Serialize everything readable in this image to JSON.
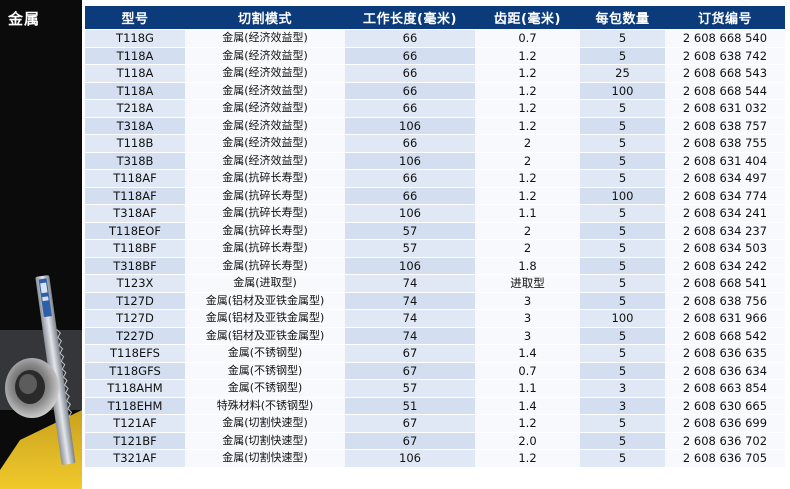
{
  "side": {
    "title": "金属"
  },
  "headers": [
    "型号",
    "切割模式",
    "工作长度(毫米)",
    "齿距(毫米)",
    "每包数量",
    "订货编号"
  ],
  "rows": [
    [
      "T118G",
      "金属(经济效益型)",
      "66",
      "0.7",
      "5",
      "2 608 668 540"
    ],
    [
      "T118A",
      "金属(经济效益型)",
      "66",
      "1.2",
      "5",
      "2 608 638 742"
    ],
    [
      "T118A",
      "金属(经济效益型)",
      "66",
      "1.2",
      "25",
      "2 608 668 543"
    ],
    [
      "T118A",
      "金属(经济效益型)",
      "66",
      "1.2",
      "100",
      "2 608 668 544"
    ],
    [
      "T218A",
      "金属(经济效益型)",
      "66",
      "1.2",
      "5",
      "2 608 631 032"
    ],
    [
      "T318A",
      "金属(经济效益型)",
      "106",
      "1.2",
      "5",
      "2 608 638 757"
    ],
    [
      "T118B",
      "金属(经济效益型)",
      "66",
      "2",
      "5",
      "2 608 638 755"
    ],
    [
      "T318B",
      "金属(经济效益型)",
      "106",
      "2",
      "5",
      "2 608 631 404"
    ],
    [
      "T118AF",
      "金属(抗碎长寿型)",
      "66",
      "1.2",
      "5",
      "2 608 634 497"
    ],
    [
      "T118AF",
      "金属(抗碎长寿型)",
      "66",
      "1.2",
      "100",
      "2 608 634 774"
    ],
    [
      "T318AF",
      "金属(抗碎长寿型)",
      "106",
      "1.1",
      "5",
      "2 608 634 241"
    ],
    [
      "T118EOF",
      "金属(抗碎长寿型)",
      "57",
      "2",
      "5",
      "2 608 634 237"
    ],
    [
      "T118BF",
      "金属(抗碎长寿型)",
      "57",
      "2",
      "5",
      "2 608 634 503"
    ],
    [
      "T318BF",
      "金属(抗碎长寿型)",
      "106",
      "1.8",
      "5",
      "2 608 634 242"
    ],
    [
      "T123X",
      "金属(进取型)",
      "74",
      "进取型",
      "5",
      "2 608 668 541"
    ],
    [
      "T127D",
      "金属(铝材及亚铁金属型)",
      "74",
      "3",
      "5",
      "2 608 638 756"
    ],
    [
      "T127D",
      "金属(铝材及亚铁金属型)",
      "74",
      "3",
      "100",
      "2 608 631 966"
    ],
    [
      "T227D",
      "金属(铝材及亚铁金属型)",
      "74",
      "3",
      "5",
      "2 608 668 542"
    ],
    [
      "T118EFS",
      "金属(不锈钢型)",
      "67",
      "1.4",
      "5",
      "2 608 636 635"
    ],
    [
      "T118GFS",
      "金属(不锈钢型)",
      "67",
      "0.7",
      "5",
      "2 608 636 634"
    ],
    [
      "T118AHM",
      "金属(不锈钢型)",
      "57",
      "1.1",
      "3",
      "2 608 663 854"
    ],
    [
      "T118EHM",
      "特殊材料(不锈钢型)",
      "51",
      "1.4",
      "3",
      "2 608 630 665"
    ],
    [
      "T121AF",
      "金属(切割快速型)",
      "67",
      "1.2",
      "5",
      "2 608 636 699"
    ],
    [
      "T121BF",
      "金属(切割快速型)",
      "67",
      "2.0",
      "5",
      "2 608 636 702"
    ],
    [
      "T321AF",
      "金属(切割快速型)",
      "106",
      "1.2",
      "5",
      "2 608 636 705"
    ]
  ]
}
